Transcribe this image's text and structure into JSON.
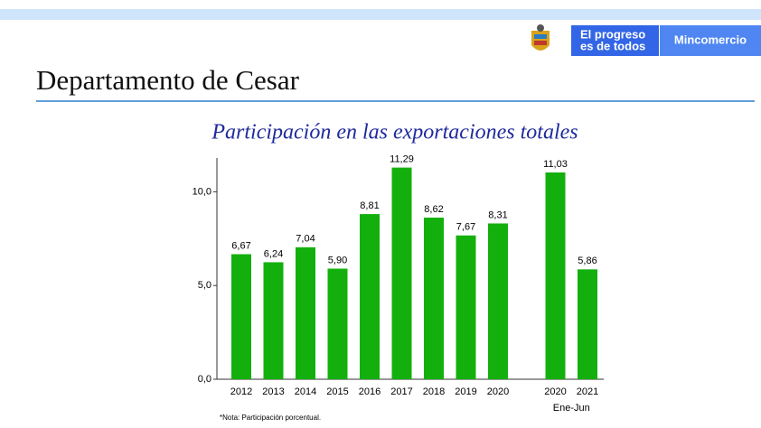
{
  "header": {
    "brand_line1": "El progreso",
    "brand_line2": "es de todos",
    "ministry": "Mincomercio",
    "title": "Departamento de Cesar"
  },
  "chart_data": {
    "type": "bar",
    "title": "Participación en las exportaciones totales",
    "categories": [
      "2012",
      "2013",
      "2014",
      "2015",
      "2016",
      "2017",
      "2018",
      "2019",
      "2020",
      "2020",
      "2021"
    ],
    "values": [
      6.67,
      6.24,
      7.04,
      5.9,
      8.81,
      11.29,
      8.62,
      7.67,
      8.31,
      11.03,
      5.86
    ],
    "value_labels": [
      "6,67",
      "6,24",
      "7,04",
      "5,90",
      "8,81",
      "11,29",
      "8,62",
      "7,67",
      "8,31",
      "11,03",
      "5,86"
    ],
    "color": "#13b00d",
    "ylim": [
      0,
      11.8
    ],
    "yticks": [
      {
        "value": 0,
        "label": "0,0"
      },
      {
        "value": 5,
        "label": "5,0"
      },
      {
        "value": 10,
        "label": "10,0"
      }
    ],
    "period_label": "Ene-Jun",
    "note": "*Nota: Participación porcentual."
  }
}
